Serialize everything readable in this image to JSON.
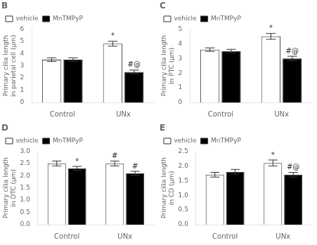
{
  "chart_data": [
    {
      "type": "bar",
      "title": "B",
      "ylabel": "Primary cilia length\nin parietal cell (μm)",
      "categories": [
        "Control",
        "UNx"
      ],
      "series": [
        {
          "name": "vehicle",
          "color": "white",
          "values": [
            3.5,
            4.8
          ],
          "errors": [
            0.15,
            0.2
          ],
          "annotations": [
            null,
            "*"
          ]
        },
        {
          "name": "MnTMPyP",
          "color": "black",
          "values": [
            3.5,
            2.5
          ],
          "errors": [
            0.15,
            0.15
          ],
          "annotations": [
            null,
            "#@"
          ]
        }
      ],
      "ylim": [
        0,
        6
      ],
      "yticks": [
        0,
        1,
        2,
        3,
        4,
        5,
        6
      ],
      "grid": false,
      "legend": "upper left"
    },
    {
      "type": "bar",
      "title": "C",
      "ylabel": "Primary cilia length\nin PTC (μm)",
      "categories": [
        "Control",
        "UNx"
      ],
      "series": [
        {
          "name": "vehicle",
          "color": "white",
          "values": [
            3.6,
            4.5
          ],
          "errors": [
            0.12,
            0.2
          ],
          "annotations": [
            null,
            "*"
          ]
        },
        {
          "name": "MnTMPyP",
          "color": "black",
          "values": [
            3.5,
            3.0
          ],
          "errors": [
            0.12,
            0.15
          ],
          "annotations": [
            null,
            "#@"
          ]
        }
      ],
      "ylim": [
        0,
        5
      ],
      "yticks": [
        0,
        1,
        2,
        3,
        4,
        5
      ],
      "grid": false,
      "legend": "upper left"
    },
    {
      "type": "bar",
      "title": "D",
      "ylabel": "Primary cilia length\nin DTC (μm)",
      "categories": [
        "Control",
        "UNx"
      ],
      "series": [
        {
          "name": "vehicle",
          "color": "white",
          "values": [
            2.5,
            2.5
          ],
          "errors": [
            0.1,
            0.1
          ],
          "annotations": [
            null,
            "#"
          ]
        },
        {
          "name": "MnTMPyP",
          "color": "black",
          "values": [
            2.3,
            2.1
          ],
          "errors": [
            0.08,
            0.08
          ],
          "annotations": [
            "*",
            "#"
          ]
        }
      ],
      "ylim": [
        0.0,
        3.0
      ],
      "yticks": [
        {
          "value": 0,
          "label": "0.0"
        },
        0.5,
        {
          "value": 1,
          "label": "1.0"
        },
        1.5,
        {
          "value": 2,
          "label": "2.0"
        },
        2.5,
        {
          "value": 3,
          "label": "3.0"
        }
      ],
      "grid": false,
      "legend": "upper left"
    },
    {
      "type": "bar",
      "title": "E",
      "ylabel": "Primary cilia length\nin CD (μm)",
      "categories": [
        "Control",
        "UNx"
      ],
      "series": [
        {
          "name": "vehicle",
          "color": "white",
          "values": [
            1.7,
            2.1
          ],
          "errors": [
            0.08,
            0.1
          ],
          "annotations": [
            null,
            "*"
          ]
        },
        {
          "name": "MnTMPyP",
          "color": "black",
          "values": [
            1.8,
            1.7
          ],
          "errors": [
            0.08,
            0.08
          ],
          "annotations": [
            null,
            "#@"
          ]
        }
      ],
      "ylim": [
        0.0,
        2.5
      ],
      "yticks": [
        {
          "value": 0,
          "label": "0.0"
        },
        0.5,
        {
          "value": 1,
          "label": "1.0"
        },
        1.5,
        {
          "value": 2,
          "label": "2.0"
        },
        2.5
      ],
      "grid": false,
      "legend": "upper left"
    }
  ]
}
